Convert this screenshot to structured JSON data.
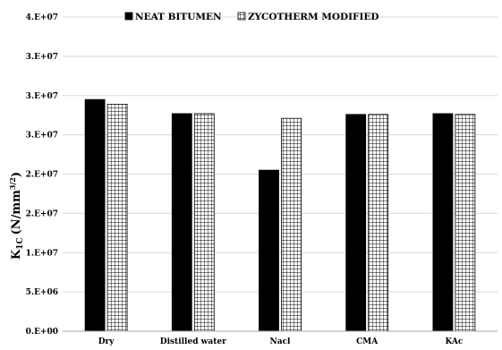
{
  "chart_data": {
    "type": "bar",
    "title": "",
    "xlabel": "",
    "ylabel": "K",
    "ylabel_subscript": "1C",
    "ylabel_unit": "(N/mm",
    "ylabel_unit_sup": "3/2",
    "ylabel_unit_close": ")",
    "ylim": [
      0,
      40000000
    ],
    "yticks": [
      0,
      5000000,
      10000000,
      15000000,
      20000000,
      25000000,
      30000000,
      35000000,
      40000000
    ],
    "ytick_labels": [
      "0.E+00",
      "5.E+06",
      "1.E+07",
      "2.E+07",
      "2.E+07",
      "3.E+07",
      "3.E+07",
      "3.E+07",
      "4.E+07"
    ],
    "grid": true,
    "legend_position": "top",
    "categories": [
      "Dry",
      "Distilled water",
      "Nacl",
      "CMA",
      "KAc"
    ],
    "series": [
      {
        "name": "NEAT BITUMEN",
        "color": "#000000",
        "pattern": "solid",
        "values": [
          29500000,
          27700000,
          20500000,
          27600000,
          27700000
        ]
      },
      {
        "name": "ZYCOTHERM MODIFIED",
        "color": "#000000",
        "pattern": "grid",
        "values": [
          28900000,
          27700000,
          27100000,
          27600000,
          27600000
        ]
      }
    ]
  }
}
